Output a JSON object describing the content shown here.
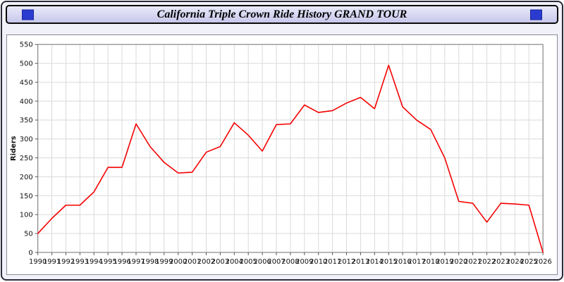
{
  "header": {
    "title": "California Triple Crown Ride History GRAND TOUR"
  },
  "colors": {
    "page_bg": "#f1f1fa",
    "header_bg_top": "#eaeafa",
    "header_bg_bottom": "#c7c7ec",
    "blue_square": "#2b3bd0",
    "grid": "#dadada",
    "plot_border": "#777777",
    "axis_text": "#111111",
    "line": "#f40000"
  },
  "chart_data": {
    "type": "line",
    "title": "California Triple Crown Ride History GRAND TOUR",
    "xlabel": "",
    "ylabel": "Riders",
    "ylim": [
      0,
      550
    ],
    "ytick_step": 50,
    "grid": true,
    "legend": "none",
    "x": [
      1990,
      1991,
      1992,
      1993,
      1994,
      1995,
      1996,
      1997,
      1998,
      1999,
      2000,
      2001,
      2002,
      2003,
      2004,
      2005,
      2006,
      2007,
      2008,
      2009,
      2010,
      2011,
      2012,
      2013,
      2014,
      2015,
      2016,
      2017,
      2018,
      2019,
      2020,
      2021,
      2022,
      2023,
      2024,
      2025,
      2026
    ],
    "series": [
      {
        "name": "Riders",
        "color": "#f40000",
        "values": [
          50,
          90,
          125,
          125,
          160,
          225,
          225,
          340,
          280,
          238,
          210,
          212,
          265,
          280,
          343,
          310,
          268,
          338,
          340,
          390,
          370,
          375,
          395,
          410,
          380,
          495,
          385,
          350,
          325,
          250,
          135,
          130,
          80,
          130,
          128,
          125,
          0
        ]
      }
    ]
  }
}
